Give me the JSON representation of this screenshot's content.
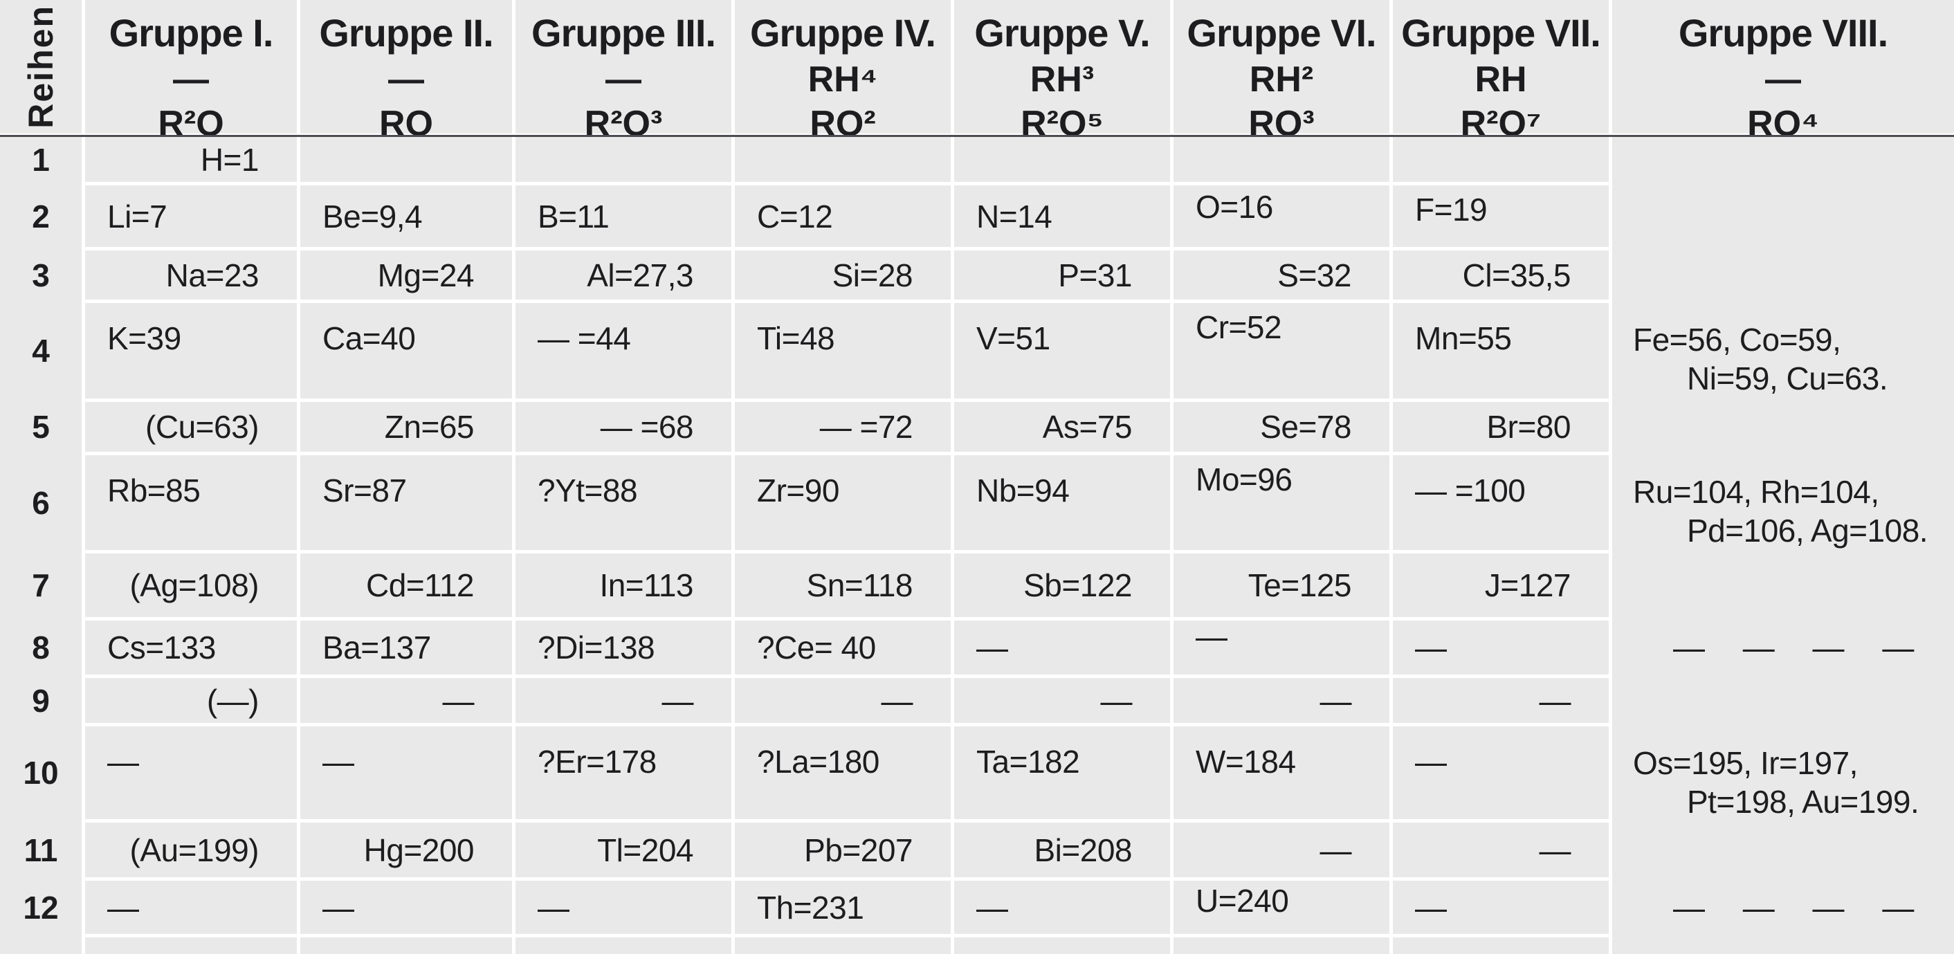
{
  "page": {
    "background": "#ffffff",
    "cell_bg": "#e9e9e9",
    "grid_line_color": "#ffffff",
    "header_rule_color": "#4c4c52",
    "text_color": "#1d1d1f"
  },
  "table": {
    "row_axis_label": "Reihen",
    "group_headers": [
      {
        "title": "Gruppe I.",
        "line2": "—",
        "line3": "R²O"
      },
      {
        "title": "Gruppe II.",
        "line2": "—",
        "line3": "RO"
      },
      {
        "title": "Gruppe III.",
        "line2": "—",
        "line3": "R²O³"
      },
      {
        "title": "Gruppe IV.",
        "line2": "RH⁴",
        "line3": "RO²"
      },
      {
        "title": "Gruppe V.",
        "line2": "RH³",
        "line3": "R²O⁵"
      },
      {
        "title": "Gruppe VI.",
        "line2": "RH²",
        "line3": "RO³"
      },
      {
        "title": "Gruppe VII.",
        "line2": "RH",
        "line3": "R²O⁷"
      },
      {
        "title": "Gruppe VIII.",
        "line2": "—",
        "line3": "RO⁴"
      }
    ],
    "rows": [
      {
        "num": "1",
        "cells": [
          "H=1",
          "",
          "",
          "",
          "",
          "",
          ""
        ]
      },
      {
        "num": "2",
        "cells": [
          "Li=7",
          "Be=9,4",
          "B=11",
          "C=12",
          "N=14",
          "O=16",
          "F=19"
        ]
      },
      {
        "num": "3",
        "cells": [
          "Na=23",
          "Mg=24",
          "Al=27,3",
          "Si=28",
          "P=31",
          "S=32",
          "Cl=35,5"
        ]
      },
      {
        "num": "4",
        "cells": [
          "K=39",
          "Ca=40",
          "— =44",
          "Ti=48",
          "V=51",
          "Cr=52",
          "Mn=55"
        ]
      },
      {
        "num": "5",
        "cells": [
          "(Cu=63)",
          "Zn=65",
          "— =68",
          "— =72",
          "As=75",
          "Se=78",
          "Br=80"
        ]
      },
      {
        "num": "6",
        "cells": [
          "Rb=85",
          "Sr=87",
          "?Yt=88",
          "Zr=90",
          "Nb=94",
          "Mo=96",
          "— =100"
        ]
      },
      {
        "num": "7",
        "cells": [
          "(Ag=108)",
          "Cd=112",
          "In=113",
          "Sn=118",
          "Sb=122",
          "Te=125",
          "J=127"
        ]
      },
      {
        "num": "8",
        "cells": [
          "Cs=133",
          "Ba=137",
          "?Di=138",
          "?Ce= 40",
          "—",
          "—",
          "—"
        ]
      },
      {
        "num": "9",
        "cells": [
          "(—)",
          "—",
          "—",
          "—",
          "—",
          "—",
          "—"
        ]
      },
      {
        "num": "10",
        "cells": [
          "—",
          "—",
          "?Er=178",
          "?La=180",
          "Ta=182",
          "W=184",
          "—"
        ]
      },
      {
        "num": "11",
        "cells": [
          "(Au=199)",
          "Hg=200",
          "Tl=204",
          "Pb=207",
          "Bi=208",
          "—",
          "—"
        ]
      },
      {
        "num": "12",
        "cells": [
          "—",
          "—",
          "—",
          "Th=231",
          "—",
          "U=240",
          "—"
        ]
      }
    ],
    "group8_blocks": [
      {
        "row": 4,
        "lines": [
          "Fe=56, Co=59,",
          "Ni=59, Cu=63."
        ]
      },
      {
        "row": 6,
        "lines": [
          "Ru=104, Rh=104,",
          "Pd=106, Ag=108."
        ]
      },
      {
        "row": 8,
        "lines": [
          "— — — —"
        ]
      },
      {
        "row": 10,
        "lines": [
          "Os=195, Ir=197,",
          "Pt=198, Au=199."
        ]
      },
      {
        "row": 12,
        "lines": [
          "— — — —"
        ]
      }
    ]
  }
}
